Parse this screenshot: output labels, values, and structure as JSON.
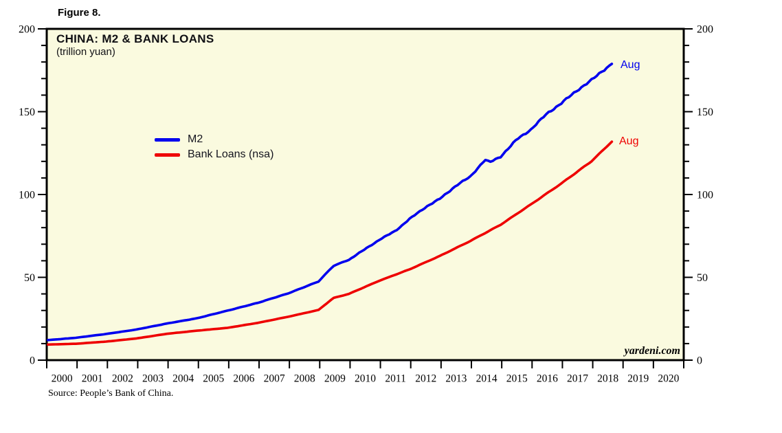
{
  "figure_label": "Figure 8.",
  "chart": {
    "title": "CHINA: M2 & BANK LOANS",
    "subtitle": "(trillion yuan)",
    "watermark": "yardeni.com",
    "source": "Source: People’s Bank of China."
  },
  "chart_data": {
    "type": "line",
    "title": "CHINA: M2 & BANK LOANS",
    "unit": "trillion yuan",
    "x_range": [
      2000,
      2021
    ],
    "ylim": [
      0,
      200
    ],
    "yticks_major": [
      0,
      50,
      100,
      150,
      200
    ],
    "ytick_minor_step": 10,
    "grid": false,
    "legend_position": "upper-left-inside",
    "plot_bg": "#FAFADF",
    "frame_color": "#000000",
    "x_year_labels": [
      "2000",
      "2001",
      "2002",
      "2003",
      "2004",
      "2005",
      "2006",
      "2007",
      "2008",
      "2009",
      "2010",
      "2011",
      "2012",
      "2013",
      "2014",
      "2015",
      "2016",
      "2017",
      "2018",
      "2019",
      "2020"
    ],
    "series": [
      {
        "name": "M2",
        "color": "#0000EE",
        "end_label": "Aug",
        "end_time": 2018.63,
        "end_value": 178.9,
        "anchors": [
          [
            2000.04,
            12.1
          ],
          [
            2000.96,
            13.5
          ],
          [
            2001.96,
            15.8
          ],
          [
            2002.96,
            18.5
          ],
          [
            2003.96,
            22.1
          ],
          [
            2004.96,
            25.3
          ],
          [
            2005.96,
            29.9
          ],
          [
            2006.96,
            34.6
          ],
          [
            2007.96,
            40.3
          ],
          [
            2008.96,
            47.5
          ],
          [
            2009.45,
            56.9
          ],
          [
            2009.96,
            60.6
          ],
          [
            2010.96,
            72.6
          ],
          [
            2011.5,
            78.1
          ],
          [
            2011.96,
            85.2
          ],
          [
            2012.5,
            92.5
          ],
          [
            2012.96,
            97.4
          ],
          [
            2013.5,
            105.4
          ],
          [
            2013.96,
            110.7
          ],
          [
            2014.45,
            121.0
          ],
          [
            2014.6,
            119.4
          ],
          [
            2014.96,
            122.8
          ],
          [
            2015.5,
            133.3
          ],
          [
            2015.96,
            139.2
          ],
          [
            2016.5,
            149.0
          ],
          [
            2016.96,
            155.0
          ],
          [
            2017.5,
            163.1
          ],
          [
            2017.96,
            169.0
          ],
          [
            2018.3,
            174.3
          ],
          [
            2018.63,
            178.9
          ]
        ]
      },
      {
        "name": "Bank Loans (nsa)",
        "color": "#EE0000",
        "end_label": "Aug",
        "end_time": 2018.63,
        "end_value": 131.9,
        "anchors": [
          [
            2000.04,
            9.4
          ],
          [
            2000.96,
            9.9
          ],
          [
            2001.96,
            11.2
          ],
          [
            2002.96,
            13.1
          ],
          [
            2003.96,
            15.9
          ],
          [
            2004.96,
            17.8
          ],
          [
            2005.96,
            19.5
          ],
          [
            2006.96,
            22.5
          ],
          [
            2007.96,
            26.2
          ],
          [
            2008.96,
            30.3
          ],
          [
            2009.45,
            37.5
          ],
          [
            2009.96,
            40.0
          ],
          [
            2010.96,
            47.9
          ],
          [
            2011.96,
            54.8
          ],
          [
            2012.96,
            62.9
          ],
          [
            2013.96,
            71.9
          ],
          [
            2014.96,
            81.7
          ],
          [
            2015.96,
            94.0
          ],
          [
            2016.96,
            106.6
          ],
          [
            2017.96,
            120.1
          ],
          [
            2018.63,
            131.9
          ]
        ]
      }
    ]
  }
}
